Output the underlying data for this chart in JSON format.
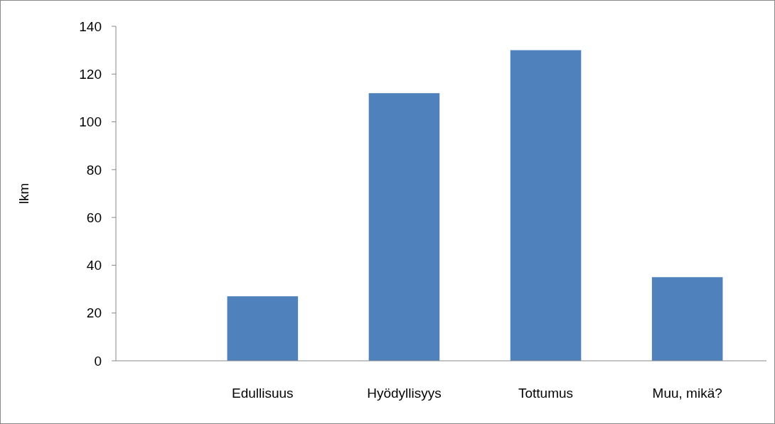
{
  "chart_data": {
    "type": "bar",
    "ylabel": "lkm",
    "categories": [
      "Edullisuus",
      "Hyödyllisyys",
      "Tottumus",
      "Muu, mikä?"
    ],
    "values": [
      27,
      112,
      130,
      35
    ],
    "color": "#4f81bd",
    "ylim": [
      0,
      140
    ],
    "yticks": [
      0,
      20,
      40,
      60,
      80,
      100,
      120,
      140
    ],
    "grid": false
  }
}
